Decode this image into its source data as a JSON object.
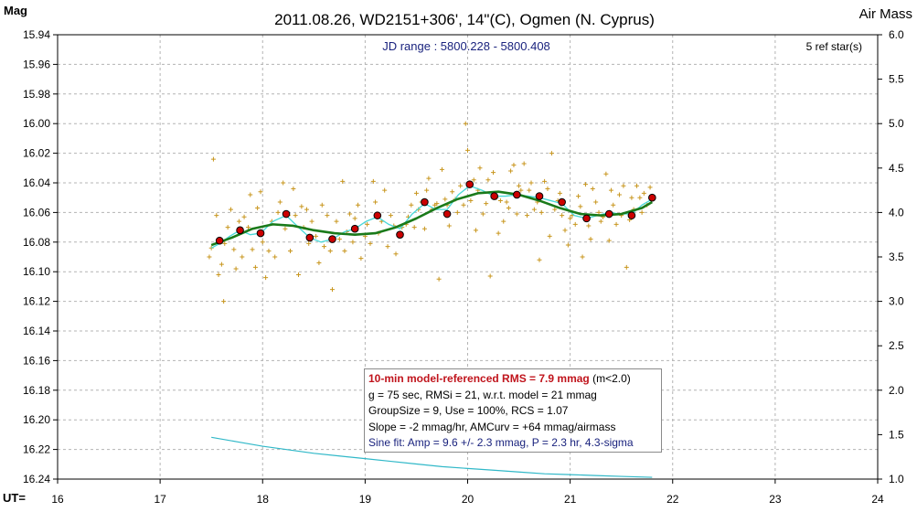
{
  "title": "2011.08.26, WD2151+306', 14\"(C), Ogmen (N. Cyprus)",
  "left_axis_label": "Mag",
  "right_axis_label": "Air Mass",
  "x_axis_prefix": "UT=",
  "jd_range": "JD range : 5800.228 - 5800.408",
  "ref_stars": "5 ref star(s)",
  "info": {
    "rms_main": "10-min model-referenced RMS = 7.9 mmag",
    "rms_extra": " (m<2.0)",
    "line2": "g = 75 sec, RMSi = 21, w.r.t. model = 21 mmag",
    "line3": "GroupSize = 9, Use = 100%, RCS = 1.07",
    "line4": "Slope = -2 mmag/hr, AMCurv = +64 mmag/airmass",
    "line5": "Sine fit: Amp = 9.6 +/- 2.3 mmag, P = 2.3 hr, 4.3-sigma"
  },
  "colors": {
    "raw_points": "#c8961e",
    "group_points": "#cc0000",
    "model_curve": "#1a7a1a",
    "smooth_curve": "#48d8d8",
    "airmass_curve": "#30b8c8",
    "grid": "#b4b4b4"
  },
  "chart_data": {
    "type": "scatter",
    "x_label": "UT",
    "y_label": "Mag",
    "y2_label": "Air Mass",
    "xlim": [
      16,
      24
    ],
    "ylim": [
      16.24,
      15.94
    ],
    "y2lim": [
      1.0,
      6.0
    ],
    "x_ticks": [
      16,
      17,
      18,
      19,
      20,
      21,
      22,
      23,
      24
    ],
    "y_ticks": [
      "15.94",
      "15.96",
      "15.98",
      "16.00",
      "16.02",
      "16.04",
      "16.06",
      "16.08",
      "16.10",
      "16.12",
      "16.14",
      "16.16",
      "16.18",
      "16.20",
      "16.22",
      "16.24"
    ],
    "y2_ticks": [
      "6.0",
      "5.5",
      "5.0",
      "4.5",
      "4.0",
      "3.5",
      "3.0",
      "2.5",
      "2.0",
      "1.5",
      "1.0"
    ],
    "grid": true,
    "group_means": [
      [
        17.58,
        16.079
      ],
      [
        17.78,
        16.072
      ],
      [
        17.98,
        16.074
      ],
      [
        18.23,
        16.061
      ],
      [
        18.46,
        16.077
      ],
      [
        18.68,
        16.078
      ],
      [
        18.9,
        16.071
      ],
      [
        19.12,
        16.062
      ],
      [
        19.34,
        16.075
      ],
      [
        19.58,
        16.053
      ],
      [
        19.8,
        16.061
      ],
      [
        20.02,
        16.041
      ],
      [
        20.26,
        16.049
      ],
      [
        20.48,
        16.048
      ],
      [
        20.7,
        16.049
      ],
      [
        20.92,
        16.053
      ],
      [
        21.16,
        16.064
      ],
      [
        21.38,
        16.061
      ],
      [
        21.6,
        16.062
      ],
      [
        21.8,
        16.05
      ]
    ],
    "model_fit": [
      [
        17.5,
        16.082
      ],
      [
        17.7,
        16.077
      ],
      [
        17.9,
        16.071
      ],
      [
        18.1,
        16.068
      ],
      [
        18.3,
        16.069
      ],
      [
        18.5,
        16.072
      ],
      [
        18.7,
        16.074
      ],
      [
        18.9,
        16.075
      ],
      [
        19.1,
        16.074
      ],
      [
        19.3,
        16.07
      ],
      [
        19.5,
        16.064
      ],
      [
        19.7,
        16.057
      ],
      [
        19.9,
        16.051
      ],
      [
        20.1,
        16.047
      ],
      [
        20.3,
        16.046
      ],
      [
        20.5,
        16.048
      ],
      [
        20.7,
        16.052
      ],
      [
        20.9,
        16.057
      ],
      [
        21.1,
        16.061
      ],
      [
        21.3,
        16.062
      ],
      [
        21.5,
        16.061
      ],
      [
        21.7,
        16.057
      ],
      [
        21.8,
        16.053
      ]
    ],
    "smoothed": [
      [
        17.5,
        16.084
      ],
      [
        17.58,
        16.081
      ],
      [
        17.68,
        16.076
      ],
      [
        17.78,
        16.072
      ],
      [
        17.88,
        16.075
      ],
      [
        17.98,
        16.074
      ],
      [
        18.1,
        16.066
      ],
      [
        18.23,
        16.062
      ],
      [
        18.35,
        16.07
      ],
      [
        18.46,
        16.077
      ],
      [
        18.57,
        16.08
      ],
      [
        18.68,
        16.078
      ],
      [
        18.8,
        16.073
      ],
      [
        18.9,
        16.071
      ],
      [
        19.01,
        16.066
      ],
      [
        19.12,
        16.063
      ],
      [
        19.23,
        16.068
      ],
      [
        19.34,
        16.071
      ],
      [
        19.46,
        16.061
      ],
      [
        19.58,
        16.054
      ],
      [
        19.69,
        16.058
      ],
      [
        19.8,
        16.058
      ],
      [
        19.91,
        16.048
      ],
      [
        20.02,
        16.042
      ],
      [
        20.14,
        16.045
      ],
      [
        20.26,
        16.049
      ],
      [
        20.37,
        16.049
      ],
      [
        20.48,
        16.048
      ],
      [
        20.59,
        16.049
      ],
      [
        20.7,
        16.05
      ],
      [
        20.81,
        16.052
      ],
      [
        20.92,
        16.054
      ],
      [
        21.04,
        16.062
      ],
      [
        21.16,
        16.064
      ],
      [
        21.27,
        16.062
      ],
      [
        21.38,
        16.06
      ],
      [
        21.49,
        16.061
      ],
      [
        21.6,
        16.061
      ],
      [
        21.7,
        16.055
      ],
      [
        21.8,
        16.051
      ]
    ],
    "airmass": [
      [
        17.5,
        1.47
      ],
      [
        17.75,
        1.42
      ],
      [
        18.0,
        1.37
      ],
      [
        18.25,
        1.33
      ],
      [
        18.5,
        1.29
      ],
      [
        18.75,
        1.26
      ],
      [
        19.0,
        1.23
      ],
      [
        19.25,
        1.2
      ],
      [
        19.5,
        1.17
      ],
      [
        19.75,
        1.14
      ],
      [
        20.0,
        1.12
      ],
      [
        20.25,
        1.1
      ],
      [
        20.5,
        1.08
      ],
      [
        20.75,
        1.06
      ],
      [
        21.0,
        1.05
      ],
      [
        21.25,
        1.04
      ],
      [
        21.5,
        1.03
      ],
      [
        21.8,
        1.02
      ]
    ],
    "raw": [
      [
        17.48,
        16.09
      ],
      [
        17.5,
        16.084
      ],
      [
        17.52,
        16.024
      ],
      [
        17.55,
        16.062
      ],
      [
        17.57,
        16.102
      ],
      [
        17.6,
        16.095
      ],
      [
        17.62,
        16.12
      ],
      [
        17.63,
        16.081
      ],
      [
        17.66,
        16.07
      ],
      [
        17.69,
        16.058
      ],
      [
        17.72,
        16.085
      ],
      [
        17.74,
        16.098
      ],
      [
        17.77,
        16.066
      ],
      [
        17.8,
        16.09
      ],
      [
        17.82,
        16.063
      ],
      [
        17.86,
        16.07
      ],
      [
        17.88,
        16.048
      ],
      [
        17.9,
        16.085
      ],
      [
        17.93,
        16.097
      ],
      [
        17.95,
        16.057
      ],
      [
        17.98,
        16.046
      ],
      [
        18.0,
        16.08
      ],
      [
        18.03,
        16.104
      ],
      [
        18.06,
        16.086
      ],
      [
        18.09,
        16.066
      ],
      [
        18.12,
        16.09
      ],
      [
        18.15,
        16.06
      ],
      [
        18.17,
        16.053
      ],
      [
        18.2,
        16.04
      ],
      [
        18.22,
        16.071
      ],
      [
        18.25,
        16.062
      ],
      [
        18.27,
        16.086
      ],
      [
        18.3,
        16.044
      ],
      [
        18.32,
        16.062
      ],
      [
        18.35,
        16.102
      ],
      [
        18.38,
        16.056
      ],
      [
        18.4,
        16.07
      ],
      [
        18.43,
        16.058
      ],
      [
        18.45,
        16.081
      ],
      [
        18.48,
        16.066
      ],
      [
        18.52,
        16.076
      ],
      [
        18.55,
        16.094
      ],
      [
        18.58,
        16.055
      ],
      [
        18.6,
        16.083
      ],
      [
        18.63,
        16.062
      ],
      [
        18.66,
        16.086
      ],
      [
        18.68,
        16.112
      ],
      [
        18.72,
        16.066
      ],
      [
        18.75,
        16.078
      ],
      [
        18.78,
        16.039
      ],
      [
        18.8,
        16.086
      ],
      [
        18.82,
        16.073
      ],
      [
        18.85,
        16.061
      ],
      [
        18.88,
        16.08
      ],
      [
        18.9,
        16.064
      ],
      [
        18.93,
        16.055
      ],
      [
        18.96,
        16.091
      ],
      [
        19.0,
        16.076
      ],
      [
        19.02,
        16.068
      ],
      [
        19.05,
        16.081
      ],
      [
        19.08,
        16.039
      ],
      [
        19.1,
        16.053
      ],
      [
        19.13,
        16.074
      ],
      [
        19.16,
        16.066
      ],
      [
        19.19,
        16.045
      ],
      [
        19.22,
        16.083
      ],
      [
        19.25,
        16.062
      ],
      [
        19.28,
        16.069
      ],
      [
        19.3,
        16.088
      ],
      [
        19.33,
        16.076
      ],
      [
        19.36,
        16.07
      ],
      [
        19.4,
        16.068
      ],
      [
        19.42,
        16.063
      ],
      [
        19.45,
        16.055
      ],
      [
        19.48,
        16.07
      ],
      [
        19.5,
        16.047
      ],
      [
        19.52,
        16.058
      ],
      [
        19.55,
        16.053
      ],
      [
        19.58,
        16.071
      ],
      [
        19.6,
        16.045
      ],
      [
        19.62,
        16.037
      ],
      [
        19.65,
        16.058
      ],
      [
        19.68,
        16.055
      ],
      [
        19.7,
        16.054
      ],
      [
        19.72,
        16.105
      ],
      [
        19.75,
        16.031
      ],
      [
        19.78,
        16.051
      ],
      [
        19.8,
        16.055
      ],
      [
        19.82,
        16.069
      ],
      [
        19.85,
        16.046
      ],
      [
        19.88,
        16.051
      ],
      [
        19.9,
        16.06
      ],
      [
        19.93,
        16.042
      ],
      [
        19.96,
        16.055
      ],
      [
        19.98,
        16.0
      ],
      [
        20.0,
        16.018
      ],
      [
        20.03,
        16.052
      ],
      [
        20.06,
        16.038
      ],
      [
        20.08,
        16.072
      ],
      [
        20.1,
        16.045
      ],
      [
        20.12,
        16.03
      ],
      [
        20.15,
        16.061
      ],
      [
        20.18,
        16.054
      ],
      [
        20.2,
        16.038
      ],
      [
        20.22,
        16.103
      ],
      [
        20.25,
        16.033
      ],
      [
        20.28,
        16.05
      ],
      [
        20.3,
        16.074
      ],
      [
        20.32,
        16.052
      ],
      [
        20.35,
        16.066
      ],
      [
        20.38,
        16.053
      ],
      [
        20.4,
        16.057
      ],
      [
        20.42,
        16.032
      ],
      [
        20.45,
        16.028
      ],
      [
        20.48,
        16.061
      ],
      [
        20.5,
        16.042
      ],
      [
        20.52,
        16.045
      ],
      [
        20.55,
        16.027
      ],
      [
        20.58,
        16.062
      ],
      [
        20.6,
        16.045
      ],
      [
        20.62,
        16.04
      ],
      [
        20.65,
        16.058
      ],
      [
        20.68,
        16.053
      ],
      [
        20.7,
        16.092
      ],
      [
        20.72,
        16.06
      ],
      [
        20.75,
        16.039
      ],
      [
        20.78,
        16.044
      ],
      [
        20.8,
        16.076
      ],
      [
        20.82,
        16.02
      ],
      [
        20.85,
        16.058
      ],
      [
        20.88,
        16.052
      ],
      [
        20.9,
        16.047
      ],
      [
        20.92,
        16.062
      ],
      [
        20.95,
        16.072
      ],
      [
        20.98,
        16.082
      ],
      [
        21.0,
        16.064
      ],
      [
        21.02,
        16.062
      ],
      [
        21.05,
        16.068
      ],
      [
        21.08,
        16.049
      ],
      [
        21.1,
        16.056
      ],
      [
        21.12,
        16.09
      ],
      [
        21.15,
        16.041
      ],
      [
        21.18,
        16.069
      ],
      [
        21.2,
        16.078
      ],
      [
        21.22,
        16.044
      ],
      [
        21.25,
        16.053
      ],
      [
        21.28,
        16.06
      ],
      [
        21.3,
        16.066
      ],
      [
        21.32,
        16.063
      ],
      [
        21.35,
        16.034
      ],
      [
        21.38,
        16.079
      ],
      [
        21.4,
        16.045
      ],
      [
        21.42,
        16.055
      ],
      [
        21.45,
        16.068
      ],
      [
        21.48,
        16.048
      ],
      [
        21.5,
        16.062
      ],
      [
        21.52,
        16.042
      ],
      [
        21.55,
        16.097
      ],
      [
        21.58,
        16.065
      ],
      [
        21.6,
        16.05
      ],
      [
        21.62,
        16.058
      ],
      [
        21.65,
        16.042
      ],
      [
        21.68,
        16.05
      ],
      [
        21.7,
        16.06
      ],
      [
        21.72,
        16.047
      ],
      [
        21.75,
        16.055
      ],
      [
        21.78,
        16.043
      ],
      [
        21.8,
        16.05
      ]
    ]
  }
}
